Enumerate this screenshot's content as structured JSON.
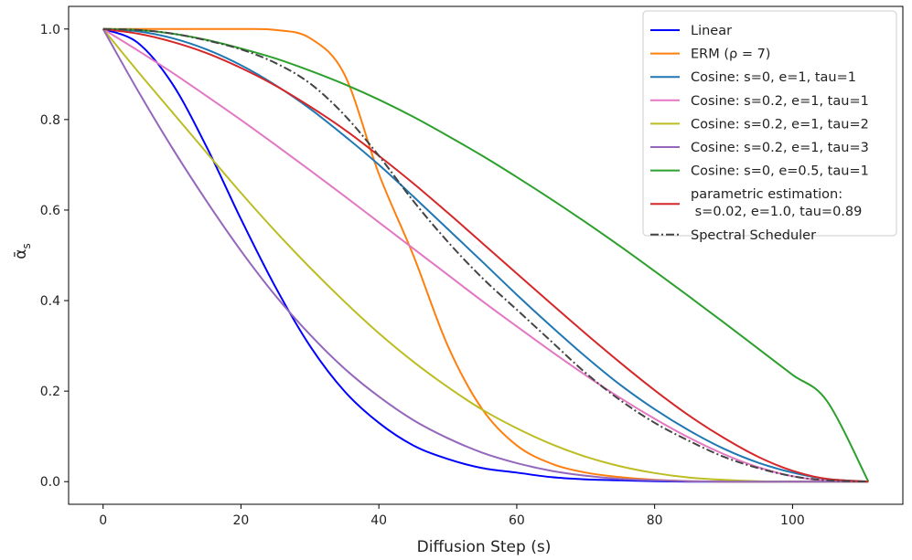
{
  "chart_data": {
    "type": "line",
    "xlabel": "Diffusion Step (s)",
    "ylabel": "ᾱ",
    "ylabel_sub": "s",
    "xlim": [
      -5,
      116
    ],
    "ylim": [
      -0.05,
      1.05
    ],
    "xticks": [
      0,
      20,
      40,
      60,
      80,
      100
    ],
    "yticks": [
      0.0,
      0.2,
      0.4,
      0.6,
      0.8,
      1.0
    ],
    "xtick_labels": [
      "0",
      "20",
      "40",
      "60",
      "80",
      "100"
    ],
    "ytick_labels": [
      "0.0",
      "0.2",
      "0.4",
      "0.6",
      "0.8",
      "1.0"
    ],
    "grid": false,
    "legend_position": "top-right",
    "x": [
      0,
      5,
      10,
      15,
      20,
      25,
      30,
      35,
      40,
      45,
      50,
      55,
      60,
      65,
      70,
      75,
      80,
      85,
      90,
      95,
      100,
      105,
      111
    ],
    "series": [
      {
        "name": "Linear",
        "color": "#0000ff",
        "dash": "solid",
        "values": [
          1.0,
          0.97,
          0.88,
          0.74,
          0.58,
          0.43,
          0.3,
          0.2,
          0.13,
          0.08,
          0.05,
          0.03,
          0.02,
          0.01,
          0.005,
          0.003,
          0.001,
          0.0,
          0.0,
          0.0,
          0.0,
          0.0,
          0.0
        ]
      },
      {
        "name": "ERM (ρ = 7)",
        "color": "#ff7f0e",
        "dash": "solid",
        "values": [
          1.0,
          1.0,
          1.0,
          1.0,
          1.0,
          0.998,
          0.98,
          0.9,
          0.68,
          0.5,
          0.3,
          0.16,
          0.08,
          0.04,
          0.02,
          0.01,
          0.004,
          0.001,
          0.0,
          0.0,
          0.0,
          0.0,
          0.0
        ]
      },
      {
        "name": "Cosine: s=0, e=1, tau=1",
        "color": "#1f77b4",
        "dash": "solid",
        "values": [
          1.0,
          0.995,
          0.98,
          0.955,
          0.92,
          0.876,
          0.824,
          0.764,
          0.7,
          0.63,
          0.558,
          0.486,
          0.413,
          0.343,
          0.276,
          0.214,
          0.16,
          0.113,
          0.073,
          0.042,
          0.02,
          0.006,
          0.0
        ]
      },
      {
        "name": "Cosine: s=0.2, e=1, tau=1",
        "color": "#e377c2",
        "dash": "solid",
        "values": [
          1.0,
          0.953,
          0.904,
          0.852,
          0.799,
          0.744,
          0.688,
          0.631,
          0.573,
          0.515,
          0.457,
          0.399,
          0.343,
          0.288,
          0.235,
          0.185,
          0.139,
          0.097,
          0.061,
          0.032,
          0.012,
          0.002,
          0.0
        ]
      },
      {
        "name": "Cosine: s=0.2, e=1, tau=2",
        "color": "#bcbd22",
        "dash": "solid",
        "values": [
          1.0,
          0.907,
          0.817,
          0.727,
          0.638,
          0.553,
          0.473,
          0.398,
          0.328,
          0.265,
          0.209,
          0.159,
          0.118,
          0.083,
          0.055,
          0.034,
          0.019,
          0.009,
          0.004,
          0.001,
          0.0,
          0.0,
          0.0
        ]
      },
      {
        "name": "Cosine: s=0.2, e=1, tau=3",
        "color": "#9467bd",
        "dash": "solid",
        "values": [
          1.0,
          0.865,
          0.738,
          0.62,
          0.51,
          0.411,
          0.325,
          0.25,
          0.188,
          0.136,
          0.096,
          0.064,
          0.041,
          0.024,
          0.013,
          0.006,
          0.003,
          0.001,
          0.0,
          0.0,
          0.0,
          0.0,
          0.0
        ]
      },
      {
        "name": "Cosine: s=0, e=0.5, tau=1",
        "color": "#2ca02c",
        "dash": "solid",
        "values": [
          1.0,
          0.998,
          0.99,
          0.976,
          0.957,
          0.935,
          0.908,
          0.878,
          0.844,
          0.806,
          0.764,
          0.72,
          0.673,
          0.624,
          0.573,
          0.52,
          0.465,
          0.409,
          0.352,
          0.294,
          0.236,
          0.178,
          0.0
        ]
      },
      {
        "name": "parametric estimation:\n s=0.02, e=1.0, tau=0.89",
        "color": "#d62728",
        "dash": "solid",
        "values": [
          1.0,
          0.99,
          0.972,
          0.947,
          0.914,
          0.875,
          0.829,
          0.778,
          0.72,
          0.659,
          0.594,
          0.527,
          0.46,
          0.393,
          0.327,
          0.263,
          0.202,
          0.146,
          0.097,
          0.055,
          0.024,
          0.006,
          0.0
        ]
      },
      {
        "name": "Spectral Scheduler",
        "color": "#444444",
        "dash": "dashdot",
        "values": [
          1.0,
          0.998,
          0.99,
          0.975,
          0.955,
          0.925,
          0.88,
          0.81,
          0.72,
          0.62,
          0.53,
          0.45,
          0.38,
          0.31,
          0.24,
          0.18,
          0.13,
          0.09,
          0.055,
          0.03,
          0.012,
          0.003,
          0.0
        ]
      }
    ]
  }
}
